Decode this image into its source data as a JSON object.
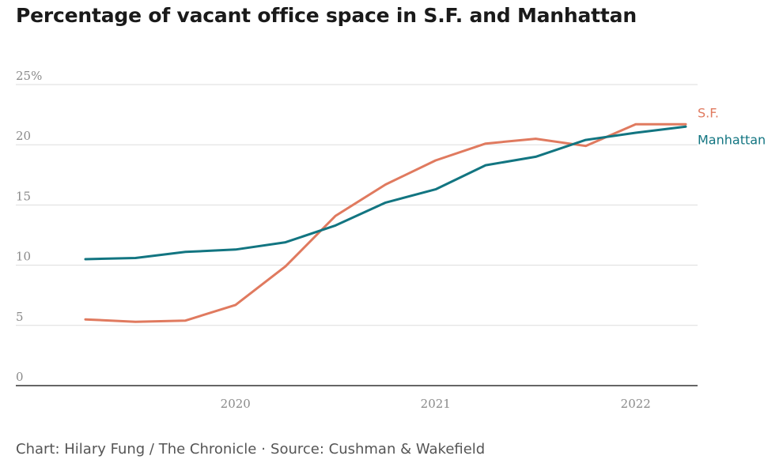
{
  "page": {
    "credit_author": "Chart: Hilary Fung / The Chronicle",
    "credit_separator": "·",
    "credit_source": "Source: Cushman & Wakefield"
  },
  "chart_data": {
    "type": "line",
    "title": "Percentage of vacant office space in S.F. and Manhattan",
    "xlabel": "",
    "ylabel": "",
    "ylim": [
      0,
      25
    ],
    "y_ticks": [
      "0",
      "5",
      "10",
      "15",
      "20",
      "25%"
    ],
    "y_tick_values": [
      0,
      5,
      10,
      15,
      20,
      25
    ],
    "x_ticks": [
      "2020",
      "2021",
      "2022"
    ],
    "x_tick_values": [
      2020.0,
      2021.0,
      2022.0
    ],
    "xlim": [
      2019.2,
      2022.3
    ],
    "grid": true,
    "x": [
      2019.25,
      2019.5,
      2019.75,
      2020.0,
      2020.25,
      2020.5,
      2020.75,
      2021.0,
      2021.25,
      2021.5,
      2021.75,
      2022.0,
      2022.25
    ],
    "series": [
      {
        "name": "S.F.",
        "color": "#e07a5f",
        "values": [
          5.5,
          5.3,
          5.4,
          6.7,
          9.9,
          14.1,
          16.7,
          18.7,
          20.1,
          20.5,
          19.9,
          21.7,
          21.7
        ]
      },
      {
        "name": "Manhattan",
        "color": "#127581",
        "values": [
          10.5,
          10.6,
          11.1,
          11.3,
          11.9,
          13.3,
          15.2,
          16.3,
          18.3,
          19.0,
          20.4,
          21.0,
          21.5
        ]
      }
    ]
  }
}
